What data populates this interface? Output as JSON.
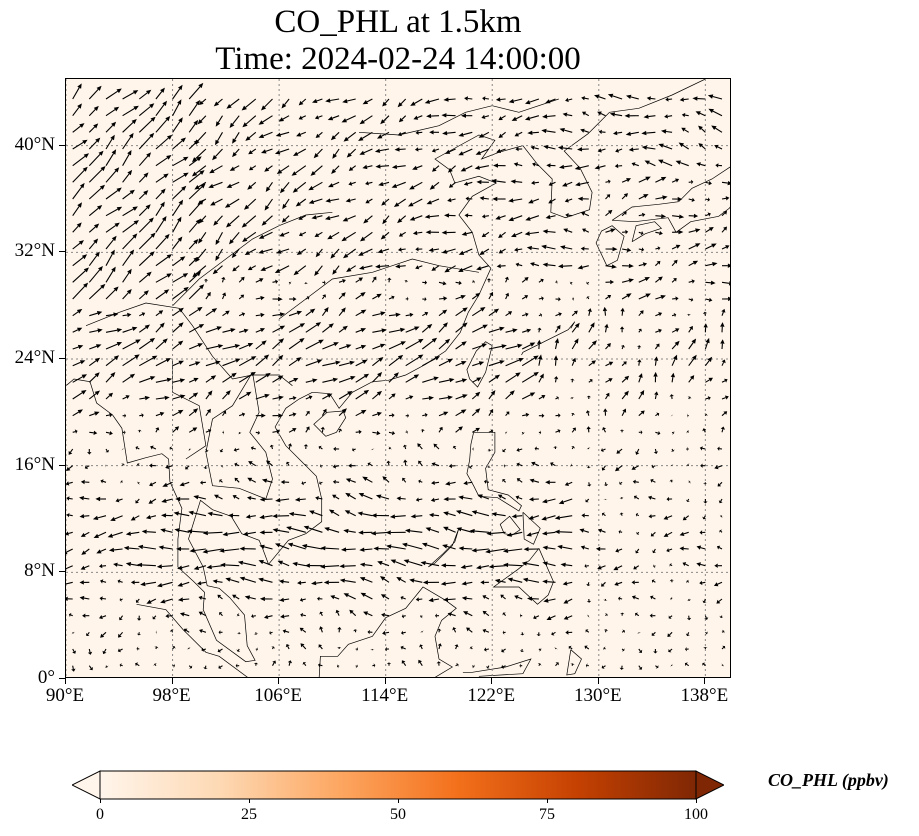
{
  "title": {
    "line1": "CO_PHL at 1.5km",
    "line2": "Time: 2024-02-24 14:00:00"
  },
  "map": {
    "lon_range": [
      90,
      140
    ],
    "lat_range": [
      0,
      45
    ],
    "background_color": "#fff5ea",
    "coastline_color": "#000000",
    "gridlines": "dotted",
    "gridline_color": "#888888",
    "arrow_color": "#000000",
    "lat_ticks": [
      {
        "value": 0,
        "label": "0°"
      },
      {
        "value": 8,
        "label": "8°N"
      },
      {
        "value": 16,
        "label": "16°N"
      },
      {
        "value": 24,
        "label": "24°N"
      },
      {
        "value": 32,
        "label": "32°N"
      },
      {
        "value": 40,
        "label": "40°N"
      }
    ],
    "lon_ticks": [
      {
        "value": 90,
        "label": "90°E"
      },
      {
        "value": 98,
        "label": "98°E"
      },
      {
        "value": 106,
        "label": "106°E"
      },
      {
        "value": 114,
        "label": "114°E"
      },
      {
        "value": 122,
        "label": "122°E"
      },
      {
        "value": 130,
        "label": "130°E"
      },
      {
        "value": 138,
        "label": "138°E"
      }
    ]
  },
  "colorbar": {
    "label": "CO_PHL (ppbv)",
    "min": 0,
    "max": 100,
    "extend": "both",
    "colors": [
      "#fff5eb",
      "#fdd9b4",
      "#fda762",
      "#f3701b",
      "#c54102",
      "#7f2704"
    ],
    "ticks": [
      {
        "value": 0,
        "label": "0"
      },
      {
        "value": 25,
        "label": "25"
      },
      {
        "value": 50,
        "label": "50"
      },
      {
        "value": 75,
        "label": "75"
      },
      {
        "value": 100,
        "label": "100"
      }
    ]
  }
}
